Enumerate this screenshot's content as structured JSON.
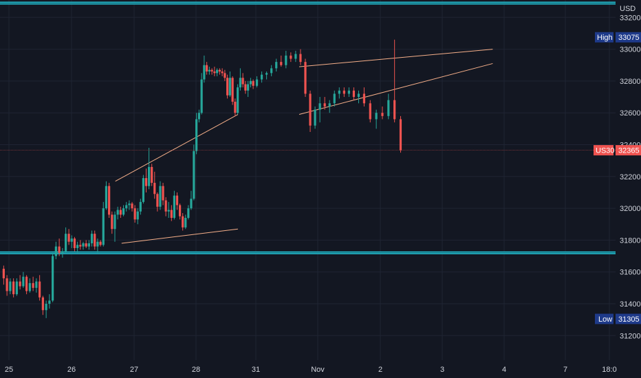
{
  "chart_data": {
    "type": "candlestick",
    "symbol": "US30",
    "currency": "USD",
    "last_price": 32365,
    "high": {
      "label": "High",
      "value": 33075
    },
    "low": {
      "label": "Low",
      "value": 31305
    },
    "ylim": [
      31110,
      33290
    ],
    "y_ticks": [
      31200,
      31400,
      31600,
      31800,
      32000,
      32200,
      32400,
      32600,
      32800,
      33000,
      33200
    ],
    "x_ticks": [
      "25",
      "26",
      "27",
      "28",
      "31",
      "Nov",
      "2",
      "3",
      "4",
      "7",
      "18:0"
    ],
    "horizontal_levels": [
      33290,
      31720
    ],
    "grid": true,
    "colors": {
      "up": "#26a69a",
      "down": "#ef5350",
      "level": "#26c6da",
      "trendline": "#f7b08a",
      "badge": "#1e3a8a",
      "price_badge": "#ef5350",
      "background": "#131722"
    },
    "trendlines": [
      {
        "from": [
          "26.7",
          32170
        ],
        "to": [
          "28.7",
          32590
        ]
      },
      {
        "from": [
          "26.8",
          31780
        ],
        "to": [
          "28.7",
          31870
        ]
      },
      {
        "from": [
          "31.7",
          32890
        ],
        "to": [
          "Nov.6",
          33000
        ]
      },
      {
        "from": [
          "31.7",
          32590
        ],
        "to": [
          "Nov.6",
          32910
        ]
      }
    ],
    "candles_note": "approximate hourly OHLC series",
    "candles": [
      [
        31620,
        31640,
        31520,
        31560
      ],
      [
        31560,
        31580,
        31450,
        31480
      ],
      [
        31480,
        31560,
        31460,
        31540
      ],
      [
        31540,
        31560,
        31440,
        31460
      ],
      [
        31460,
        31560,
        31450,
        31540
      ],
      [
        31540,
        31580,
        31490,
        31510
      ],
      [
        31510,
        31600,
        31500,
        31570
      ],
      [
        31570,
        31580,
        31460,
        31480
      ],
      [
        31480,
        31560,
        31470,
        31530
      ],
      [
        31530,
        31570,
        31480,
        31500
      ],
      [
        31500,
        31560,
        31470,
        31540
      ],
      [
        31540,
        31580,
        31420,
        31440
      ],
      [
        31440,
        31450,
        31330,
        31360
      ],
      [
        31360,
        31420,
        31310,
        31400
      ],
      [
        31400,
        31460,
        31370,
        31420
      ],
      [
        31420,
        31720,
        31410,
        31700
      ],
      [
        31700,
        31790,
        31680,
        31760
      ],
      [
        31760,
        31810,
        31700,
        31720
      ],
      [
        31720,
        31750,
        31690,
        31730
      ],
      [
        31730,
        31880,
        31720,
        31840
      ],
      [
        31840,
        31870,
        31770,
        31790
      ],
      [
        31790,
        31830,
        31750,
        31810
      ],
      [
        31810,
        31820,
        31730,
        31750
      ],
      [
        31750,
        31790,
        31720,
        31770
      ],
      [
        31770,
        31800,
        31740,
        31760
      ],
      [
        31760,
        31790,
        31740,
        31780
      ],
      [
        31780,
        31800,
        31750,
        31760
      ],
      [
        31760,
        31800,
        31740,
        31780
      ],
      [
        31780,
        31860,
        31760,
        31840
      ],
      [
        31840,
        31860,
        31740,
        31760
      ],
      [
        31760,
        31810,
        31720,
        31790
      ],
      [
        31790,
        31800,
        31760,
        31770
      ],
      [
        31770,
        32040,
        31760,
        32000
      ],
      [
        32000,
        32170,
        31990,
        32140
      ],
      [
        32140,
        32160,
        31940,
        31960
      ],
      [
        31960,
        31980,
        31840,
        31870
      ],
      [
        31870,
        31980,
        31790,
        31960
      ],
      [
        31960,
        32010,
        31930,
        31990
      ],
      [
        31990,
        32010,
        31940,
        31960
      ],
      [
        31960,
        32020,
        31950,
        32000
      ],
      [
        32000,
        32040,
        31980,
        32020
      ],
      [
        32020,
        32050,
        31990,
        32030
      ],
      [
        32030,
        32040,
        31980,
        32000
      ],
      [
        32000,
        32020,
        31910,
        31930
      ],
      [
        31930,
        32000,
        31900,
        31980
      ],
      [
        31980,
        32060,
        31960,
        32040
      ],
      [
        32040,
        32210,
        32030,
        32190
      ],
      [
        32190,
        32250,
        32100,
        32140
      ],
      [
        32140,
        32380,
        32120,
        32260
      ],
      [
        32260,
        32280,
        32140,
        32160
      ],
      [
        32160,
        32230,
        32060,
        32090
      ],
      [
        32090,
        32100,
        31980,
        32010
      ],
      [
        32010,
        32170,
        31990,
        32140
      ],
      [
        32140,
        32160,
        32020,
        32050
      ],
      [
        32050,
        32070,
        31950,
        31980
      ],
      [
        31980,
        32040,
        31940,
        31990
      ],
      [
        31990,
        32020,
        31920,
        31940
      ],
      [
        31940,
        32110,
        31930,
        32080
      ],
      [
        32080,
        32100,
        31990,
        32020
      ],
      [
        32020,
        32030,
        31930,
        31950
      ],
      [
        31950,
        31970,
        31860,
        31880
      ],
      [
        31880,
        31960,
        31870,
        31940
      ],
      [
        31940,
        32020,
        31930,
        32000
      ],
      [
        32000,
        32110,
        31990,
        32060
      ],
      [
        32060,
        32400,
        32050,
        32360
      ],
      [
        32360,
        32600,
        32340,
        32560
      ],
      [
        32560,
        32620,
        32540,
        32600
      ],
      [
        32600,
        32850,
        32590,
        32810
      ],
      [
        32810,
        32960,
        32790,
        32900
      ],
      [
        32900,
        32920,
        32840,
        32860
      ],
      [
        32860,
        32890,
        32840,
        32870
      ],
      [
        32870,
        32880,
        32840,
        32860
      ],
      [
        32860,
        32890,
        32830,
        32850
      ],
      [
        32850,
        32880,
        32830,
        32870
      ],
      [
        32870,
        32880,
        32840,
        32860
      ],
      [
        32860,
        32880,
        32830,
        32850
      ],
      [
        32850,
        32870,
        32800,
        32820
      ],
      [
        32820,
        32840,
        32690,
        32710
      ],
      [
        32710,
        32860,
        32700,
        32820
      ],
      [
        32820,
        32830,
        32650,
        32670
      ],
      [
        32670,
        32690,
        32580,
        32600
      ],
      [
        32600,
        32780,
        32590,
        32760
      ],
      [
        32760,
        32880,
        32740,
        32820
      ],
      [
        32820,
        32850,
        32760,
        32780
      ],
      [
        32780,
        32800,
        32720,
        32740
      ],
      [
        32740,
        32800,
        32700,
        32780
      ],
      [
        32780,
        32820,
        32760,
        32800
      ],
      [
        32800,
        32810,
        32750,
        32770
      ],
      [
        32770,
        32830,
        32760,
        32810
      ],
      [
        32810,
        32860,
        32790,
        32840
      ],
      [
        32840,
        32860,
        32810,
        32850
      ],
      [
        32850,
        32900,
        32830,
        32880
      ],
      [
        32880,
        32940,
        32860,
        32920
      ],
      [
        32920,
        32960,
        32890,
        32900
      ],
      [
        32900,
        32990,
        32880,
        32960
      ],
      [
        32960,
        32980,
        32920,
        32940
      ],
      [
        32940,
        32990,
        32920,
        32970
      ],
      [
        32970,
        33000,
        32900,
        32920
      ],
      [
        32920,
        32940,
        32700,
        32720
      ],
      [
        32720,
        32740,
        32480,
        32520
      ],
      [
        32520,
        32640,
        32500,
        32620
      ],
      [
        32620,
        32700,
        32540,
        32660
      ],
      [
        32660,
        32700,
        32620,
        32640
      ],
      [
        32640,
        32680,
        32600,
        32660
      ],
      [
        32660,
        32740,
        32640,
        32720
      ],
      [
        32720,
        32760,
        32690,
        32740
      ],
      [
        32740,
        32760,
        32700,
        32720
      ],
      [
        32720,
        32760,
        32700,
        32740
      ],
      [
        32740,
        32760,
        32680,
        32700
      ],
      [
        32700,
        32740,
        32660,
        32720
      ],
      [
        32720,
        32760,
        32640,
        32660
      ],
      [
        32660,
        32680,
        32540,
        32560
      ],
      [
        32560,
        32620,
        32500,
        32600
      ],
      [
        32600,
        32640,
        32560,
        32580
      ],
      [
        32580,
        32720,
        32560,
        32680
      ],
      [
        32680,
        33060,
        32540,
        32560
      ],
      [
        32560,
        32580,
        32350,
        32365
      ]
    ]
  }
}
